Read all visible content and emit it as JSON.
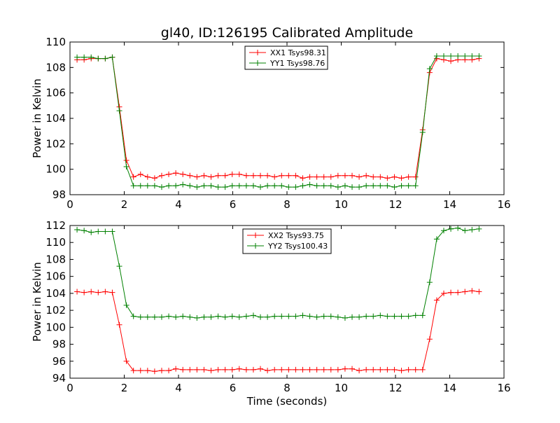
{
  "title": "gl40, ID:126195 Calibrated Amplitude",
  "colors": {
    "xx": "#ff0000",
    "yy": "#008000"
  },
  "chart_data": [
    {
      "type": "line",
      "xlabel": "",
      "ylabel": "Power in Kelvin",
      "xlim": [
        0,
        16
      ],
      "ylim": [
        98,
        110
      ],
      "x_ticks": [
        "0",
        "2",
        "4",
        "6",
        "8",
        "10",
        "12",
        "14",
        "16"
      ],
      "y_ticks": [
        "98",
        "100",
        "102",
        "104",
        "106",
        "108",
        "110"
      ],
      "legend_position": "top-center",
      "x": [
        0.26,
        0.52,
        0.78,
        1.04,
        1.3,
        1.56,
        1.82,
        2.08,
        2.34,
        2.6,
        2.86,
        3.12,
        3.38,
        3.64,
        3.9,
        4.16,
        4.42,
        4.68,
        4.94,
        5.2,
        5.46,
        5.72,
        5.98,
        6.24,
        6.5,
        6.76,
        7.02,
        7.28,
        7.54,
        7.8,
        8.06,
        8.32,
        8.58,
        8.84,
        9.1,
        9.36,
        9.62,
        9.88,
        10.14,
        10.4,
        10.66,
        10.92,
        11.18,
        11.44,
        11.7,
        11.96,
        12.22,
        12.48,
        12.74,
        13.0,
        13.26,
        13.52,
        13.78,
        14.04,
        14.3,
        14.56,
        14.82,
        15.08
      ],
      "series": [
        {
          "name": "XX1 Tsys98.31",
          "color": "#ff0000",
          "values": [
            108.6,
            108.6,
            108.7,
            108.7,
            108.7,
            108.8,
            104.9,
            100.7,
            99.4,
            99.6,
            99.4,
            99.3,
            99.5,
            99.6,
            99.7,
            99.6,
            99.5,
            99.4,
            99.5,
            99.4,
            99.5,
            99.5,
            99.6,
            99.6,
            99.5,
            99.5,
            99.5,
            99.5,
            99.4,
            99.5,
            99.5,
            99.5,
            99.3,
            99.4,
            99.4,
            99.4,
            99.4,
            99.5,
            99.5,
            99.5,
            99.4,
            99.5,
            99.4,
            99.4,
            99.3,
            99.4,
            99.3,
            99.4,
            99.4,
            103.1,
            107.6,
            108.7,
            108.6,
            108.5,
            108.6,
            108.6,
            108.6,
            108.7
          ]
        },
        {
          "name": "YY1 Tsys98.76",
          "color": "#008000",
          "values": [
            108.8,
            108.8,
            108.8,
            108.7,
            108.7,
            108.8,
            104.6,
            100.2,
            98.7,
            98.7,
            98.7,
            98.7,
            98.6,
            98.7,
            98.7,
            98.8,
            98.7,
            98.6,
            98.7,
            98.7,
            98.6,
            98.6,
            98.7,
            98.7,
            98.7,
            98.7,
            98.6,
            98.7,
            98.7,
            98.7,
            98.6,
            98.6,
            98.7,
            98.8,
            98.7,
            98.7,
            98.7,
            98.6,
            98.7,
            98.6,
            98.6,
            98.7,
            98.7,
            98.7,
            98.7,
            98.6,
            98.7,
            98.7,
            98.7,
            102.9,
            107.9,
            108.9,
            108.9,
            108.9,
            108.9,
            108.9,
            108.9,
            108.9
          ]
        }
      ]
    },
    {
      "type": "line",
      "xlabel": "Time (seconds)",
      "ylabel": "Power in Kelvin",
      "xlim": [
        0,
        16
      ],
      "ylim": [
        94,
        112
      ],
      "x_ticks": [
        "0",
        "2",
        "4",
        "6",
        "8",
        "10",
        "12",
        "14",
        "16"
      ],
      "y_ticks": [
        "94",
        "96",
        "98",
        "100",
        "102",
        "104",
        "106",
        "108",
        "110",
        "112"
      ],
      "legend_position": "top-center",
      "x": [
        0.26,
        0.52,
        0.78,
        1.04,
        1.3,
        1.56,
        1.82,
        2.08,
        2.34,
        2.6,
        2.86,
        3.12,
        3.38,
        3.64,
        3.9,
        4.16,
        4.42,
        4.68,
        4.94,
        5.2,
        5.46,
        5.72,
        5.98,
        6.24,
        6.5,
        6.76,
        7.02,
        7.28,
        7.54,
        7.8,
        8.06,
        8.32,
        8.58,
        8.84,
        9.1,
        9.36,
        9.62,
        9.88,
        10.14,
        10.4,
        10.66,
        10.92,
        11.18,
        11.44,
        11.7,
        11.96,
        12.22,
        12.48,
        12.74,
        13.0,
        13.26,
        13.52,
        13.78,
        14.04,
        14.3,
        14.56,
        14.82,
        15.08
      ],
      "series": [
        {
          "name": "XX2 Tsys93.75",
          "color": "#ff0000",
          "values": [
            104.2,
            104.1,
            104.2,
            104.1,
            104.2,
            104.1,
            100.3,
            96.0,
            94.9,
            94.9,
            94.9,
            94.8,
            94.9,
            94.9,
            95.1,
            95.0,
            95.0,
            95.0,
            95.0,
            94.9,
            95.0,
            95.0,
            95.0,
            95.1,
            95.0,
            95.0,
            95.1,
            94.9,
            95.0,
            95.0,
            95.0,
            95.0,
            95.0,
            95.0,
            95.0,
            95.0,
            95.0,
            95.0,
            95.1,
            95.1,
            94.9,
            95.0,
            95.0,
            95.0,
            95.0,
            95.0,
            94.9,
            95.0,
            95.0,
            95.0,
            98.6,
            103.2,
            104.0,
            104.1,
            104.1,
            104.2,
            104.3,
            104.2
          ]
        },
        {
          "name": "YY2 Tsys100.43",
          "color": "#008000",
          "values": [
            111.5,
            111.4,
            111.2,
            111.3,
            111.3,
            111.3,
            107.2,
            102.6,
            101.3,
            101.2,
            101.2,
            101.2,
            101.2,
            101.3,
            101.2,
            101.3,
            101.2,
            101.1,
            101.2,
            101.2,
            101.3,
            101.2,
            101.3,
            101.2,
            101.3,
            101.4,
            101.2,
            101.2,
            101.3,
            101.3,
            101.3,
            101.3,
            101.4,
            101.3,
            101.2,
            101.3,
            101.3,
            101.2,
            101.1,
            101.2,
            101.2,
            101.3,
            101.3,
            101.4,
            101.3,
            101.3,
            101.3,
            101.3,
            101.4,
            101.4,
            105.3,
            110.4,
            111.4,
            111.6,
            111.7,
            111.4,
            111.5,
            111.6
          ]
        }
      ]
    }
  ]
}
